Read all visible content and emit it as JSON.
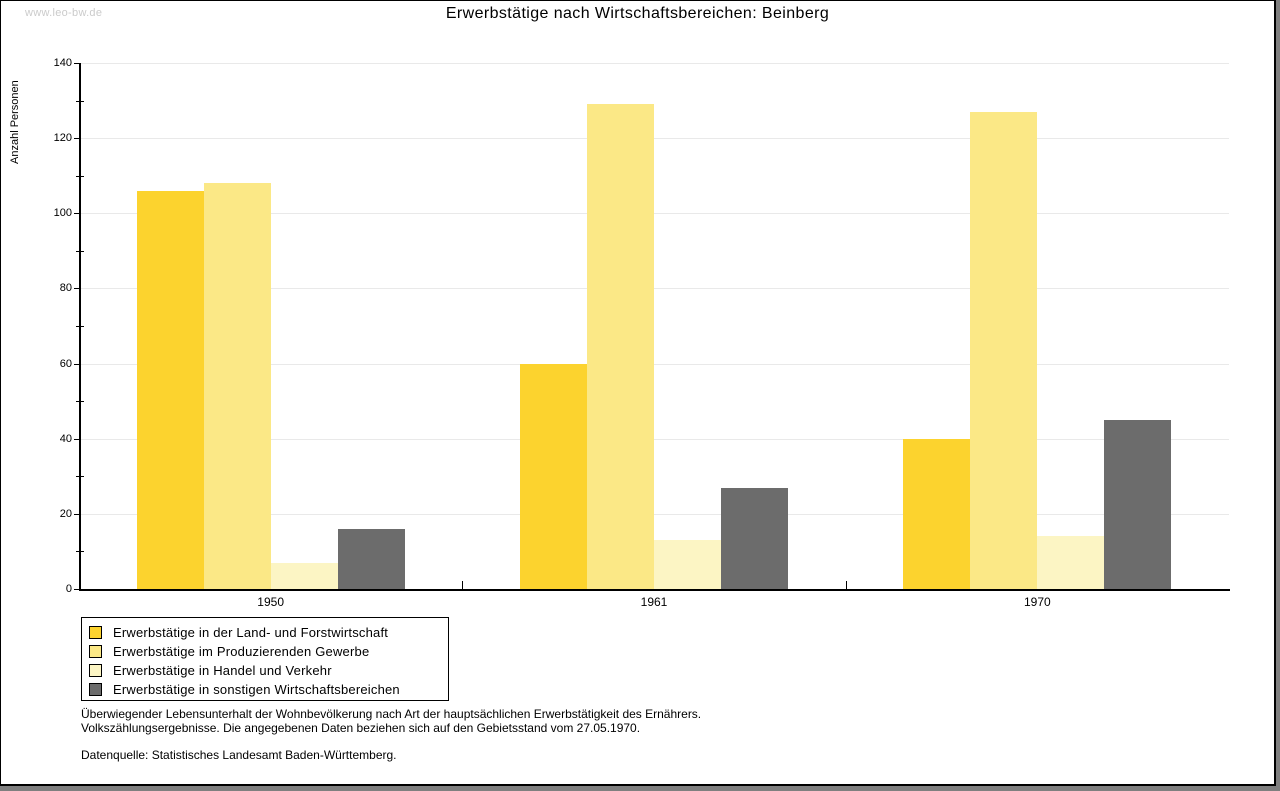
{
  "header": {
    "watermark": "www.leo-bw.de",
    "title": "Erwerbstätige nach Wirtschaftsbereichen: Beinberg"
  },
  "chart_data": {
    "type": "bar",
    "title": "Erwerbstätige nach Wirtschaftsbereichen: Beinberg",
    "xlabel": "",
    "ylabel": "Anzahl Personen",
    "ylim": [
      0,
      140
    ],
    "ytick_step": 20,
    "grid": true,
    "legend_position": "bottom-left",
    "categories": [
      "1950",
      "1961",
      "1970"
    ],
    "series": [
      {
        "name": "Erwerbstätige in der Land- und Forstwirtschaft",
        "color": "#FCD32E",
        "values": [
          106,
          60,
          40
        ]
      },
      {
        "name": "Erwerbstätige im Produzierenden Gewerbe",
        "color": "#FBE886",
        "values": [
          108,
          129,
          127
        ]
      },
      {
        "name": "Erwerbstätige in Handel und Verkehr",
        "color": "#FCF5C4",
        "values": [
          7,
          13,
          14
        ]
      },
      {
        "name": "Erwerbstätige in sonstigen Wirtschaftsbereichen",
        "color": "#6C6C6C",
        "values": [
          16,
          27,
          45
        ]
      }
    ]
  },
  "footnotes": {
    "line1": "Überwiegender Lebensunterhalt der Wohnbevölkerung nach Art der hauptsächlichen Erwerbstätigkeit des Ernährers.",
    "line2": "Volkszählungsergebnisse. Die angegebenen Daten beziehen sich auf den Gebietsstand vom 27.05.1970.",
    "source": "Datenquelle: Statistisches Landesamt Baden-Württemberg."
  },
  "style_colors": {
    "grid": "#E9E9E9",
    "axis": "#000000",
    "watermark": "#CBCBCB",
    "background": "#FFFFFF",
    "frame_shadow": "#7F7F7F"
  }
}
